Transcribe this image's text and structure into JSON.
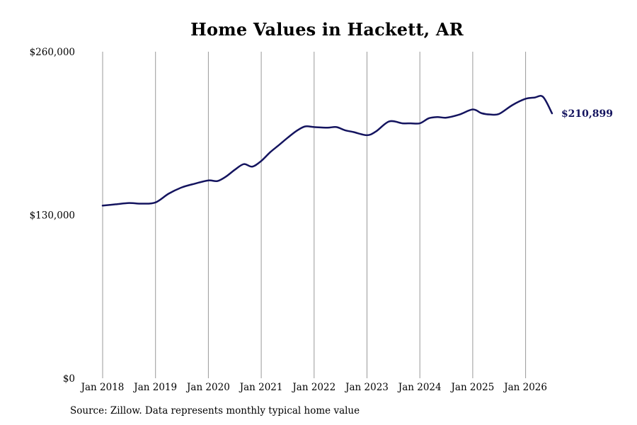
{
  "chart_data": {
    "type": "line",
    "title": "Home Values in Hackett, AR",
    "xlabel": "",
    "ylabel": "",
    "ylim": [
      0,
      260000
    ],
    "y_ticks": [
      0,
      130000,
      260000
    ],
    "y_tick_labels": [
      "$0",
      "$130,000",
      "$260,000"
    ],
    "x_ticks": [
      2018.0,
      2019.0,
      2020.0,
      2021.0,
      2022.0,
      2023.0,
      2024.0,
      2025.0,
      2026.0
    ],
    "x_tick_labels": [
      "Jan 2018",
      "Jan 2019",
      "Jan 2020",
      "Jan 2021",
      "Jan 2022",
      "Jan 2023",
      "Jan 2024",
      "Jan 2025",
      "Jan 2026"
    ],
    "xlim": [
      2018.0,
      2026.5
    ],
    "grid": "vertical",
    "line_color": "#14145f",
    "grid_color": "#999999",
    "end_label": "$210,899",
    "series": [
      {
        "x": [
          2018.0,
          2018.25,
          2018.5,
          2018.75,
          2019.0,
          2019.25,
          2019.5,
          2019.75,
          2020.0,
          2020.17,
          2020.33,
          2020.5,
          2020.67,
          2020.83,
          2021.0,
          2021.17,
          2021.33,
          2021.5,
          2021.67,
          2021.83,
          2022.0,
          2022.25,
          2022.42,
          2022.58,
          2022.75,
          2023.0,
          2023.17,
          2023.42,
          2023.67,
          2023.83,
          2024.0,
          2024.17,
          2024.33,
          2024.5,
          2024.75,
          2025.0,
          2025.17,
          2025.33,
          2025.5,
          2025.75,
          2026.0,
          2026.17,
          2026.33,
          2026.5
        ],
        "values": [
          137500,
          138500,
          139500,
          139000,
          140000,
          147000,
          152000,
          155000,
          157500,
          157000,
          160500,
          166000,
          170500,
          168500,
          173000,
          180000,
          185500,
          191500,
          197000,
          200500,
          200000,
          199500,
          200000,
          197500,
          196000,
          193500,
          196500,
          204500,
          203000,
          203000,
          203000,
          207000,
          208000,
          207500,
          210000,
          214000,
          211000,
          210000,
          210500,
          217500,
          222500,
          223500,
          224000,
          210899
        ]
      }
    ]
  },
  "source_note": "Source: Zillow. Data represents monthly typical home value"
}
